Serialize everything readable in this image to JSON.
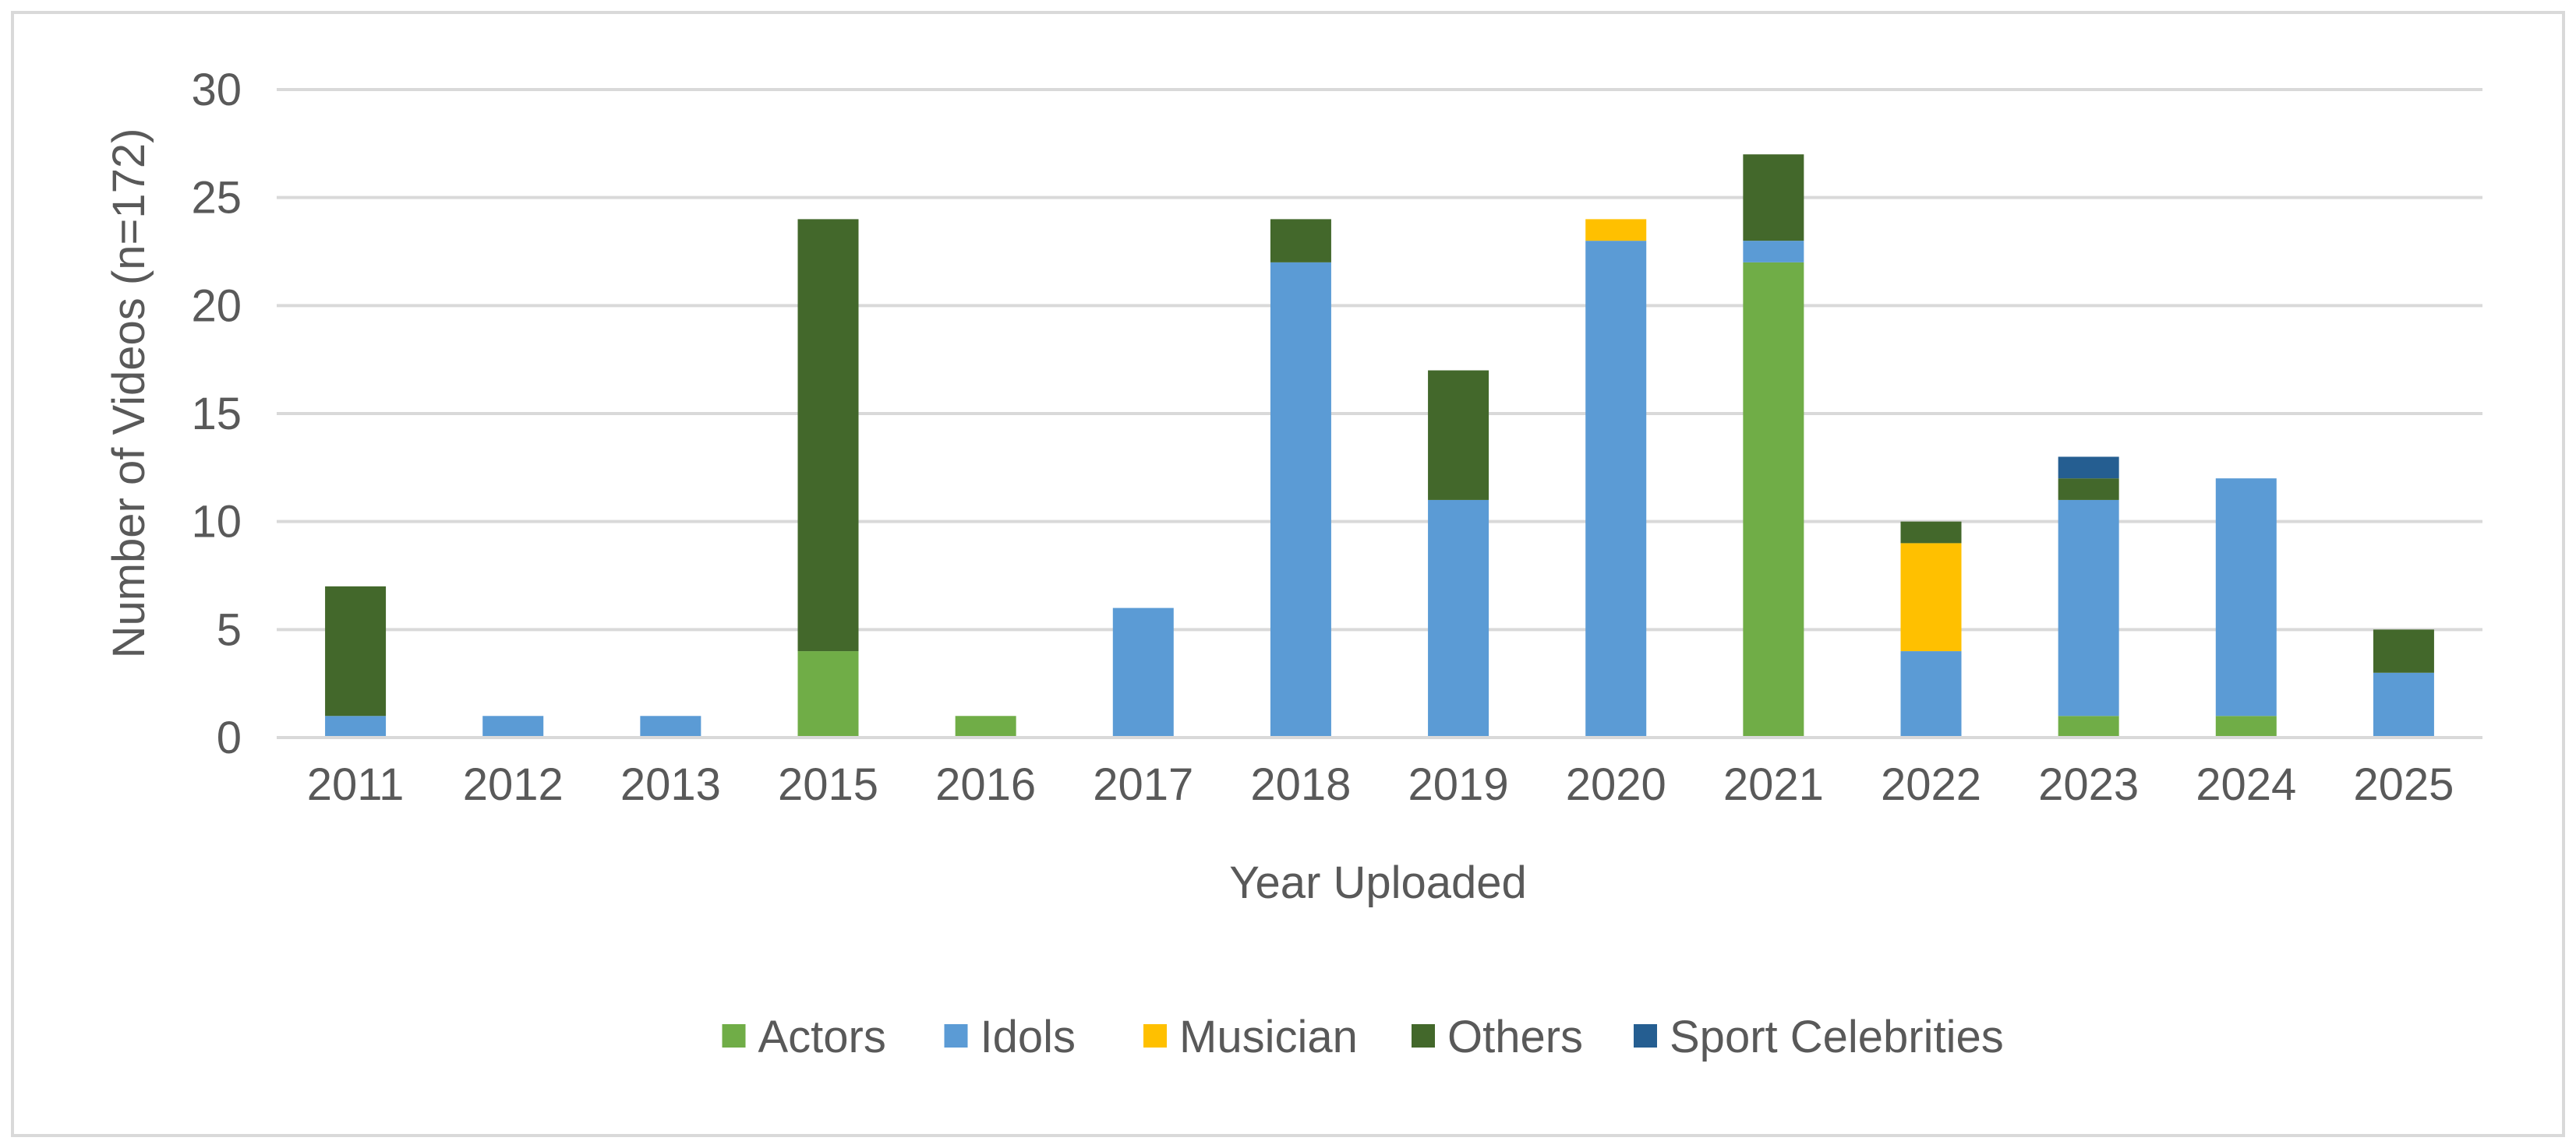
{
  "chart_data": {
    "type": "bar",
    "stacked": true,
    "xlabel": "Year Uploaded",
    "ylabel": "Number of Videos (n=172)",
    "ylim": [
      0,
      30
    ],
    "yticks": [
      0,
      5,
      10,
      15,
      20,
      25,
      30
    ],
    "grid": true,
    "legend_position": "bottom",
    "categories": [
      "2011",
      "2012",
      "2013",
      "2015",
      "2016",
      "2017",
      "2018",
      "2019",
      "2020",
      "2021",
      "2022",
      "2023",
      "2024",
      "2025"
    ],
    "series": [
      {
        "name": "Actors",
        "color": "#70ad47",
        "values": [
          0,
          0,
          0,
          4,
          1,
          0,
          0,
          0,
          0,
          22,
          0,
          1,
          1,
          0
        ]
      },
      {
        "name": "Idols",
        "color": "#5b9bd5",
        "values": [
          1,
          1,
          1,
          0,
          0,
          6,
          22,
          11,
          23,
          1,
          4,
          10,
          11,
          3
        ]
      },
      {
        "name": "Musician",
        "color": "#ffc000",
        "values": [
          0,
          0,
          0,
          0,
          0,
          0,
          0,
          0,
          1,
          0,
          5,
          0,
          0,
          0
        ]
      },
      {
        "name": "Others",
        "color": "#43682b",
        "values": [
          6,
          0,
          0,
          20,
          0,
          0,
          2,
          6,
          0,
          4,
          1,
          1,
          0,
          2
        ]
      },
      {
        "name": "Sport Celebrities",
        "color": "#255e91",
        "values": [
          0,
          0,
          0,
          0,
          0,
          0,
          0,
          0,
          0,
          0,
          0,
          1,
          0,
          0
        ]
      }
    ],
    "style": {
      "gridline_color": "#d9d9d9",
      "axis_color": "#d9d9d9",
      "text_color": "#595959"
    }
  }
}
